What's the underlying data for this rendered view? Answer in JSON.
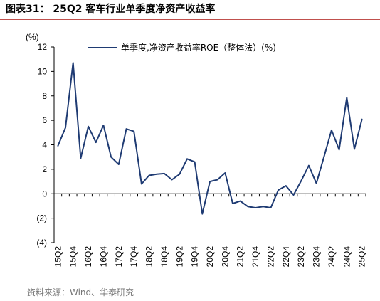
{
  "header": {
    "title": "图表31： 25Q2 客车行业单季度净资产收益率"
  },
  "footer": {
    "source": "资料来源：Wind、华泰研究"
  },
  "colors": {
    "series": "#1f3b73",
    "accent_rule": "#c0504d"
  },
  "chart_data": {
    "type": "line",
    "ylabel": "(%)",
    "ylim": [
      -4,
      12
    ],
    "y_ticks": [
      12,
      10,
      8,
      6,
      4,
      2,
      0,
      -2,
      -4
    ],
    "y_tick_labels": [
      "12",
      "10",
      "8",
      "6",
      "4",
      "2",
      "0",
      "(2)",
      "(4)"
    ],
    "grid": false,
    "legend_position": "top",
    "x_tick_labels": [
      "15Q2",
      "15Q4",
      "16Q2",
      "16Q4",
      "17Q2",
      "17Q4",
      "18Q2",
      "18Q4",
      "19Q2",
      "19Q4",
      "20Q2",
      "20Q4",
      "21Q2",
      "21Q4",
      "22Q2",
      "22Q4",
      "23Q2",
      "23Q4",
      "24Q2",
      "24Q4",
      "25Q2"
    ],
    "x": [
      "15Q2",
      "15Q3",
      "15Q4",
      "16Q1",
      "16Q2",
      "16Q3",
      "16Q4",
      "17Q1",
      "17Q2",
      "17Q3",
      "17Q4",
      "18Q1",
      "18Q2",
      "18Q3",
      "18Q4",
      "19Q1",
      "19Q2",
      "19Q3",
      "19Q4",
      "20Q1",
      "20Q2",
      "20Q3",
      "20Q4",
      "21Q1",
      "21Q2",
      "21Q3",
      "21Q4",
      "22Q1",
      "22Q2",
      "22Q3",
      "22Q4",
      "23Q1",
      "23Q2",
      "23Q3",
      "23Q4",
      "24Q1",
      "24Q2",
      "24Q3",
      "24Q4",
      "25Q1",
      "25Q2"
    ],
    "series": [
      {
        "name": "单季度,净资产收益率ROE（整体法）(%)",
        "values": [
          3.9,
          5.4,
          10.7,
          2.9,
          5.5,
          4.2,
          5.6,
          3.0,
          2.4,
          5.3,
          5.1,
          0.8,
          1.5,
          1.6,
          1.65,
          1.15,
          1.6,
          2.85,
          2.6,
          -1.65,
          1.0,
          1.15,
          1.7,
          -0.8,
          -0.6,
          -1.05,
          -1.15,
          -1.05,
          -1.15,
          0.3,
          0.65,
          -0.1,
          1.05,
          2.3,
          0.85,
          3.0,
          5.2,
          3.6,
          7.85,
          3.65,
          6.1
        ]
      }
    ]
  }
}
